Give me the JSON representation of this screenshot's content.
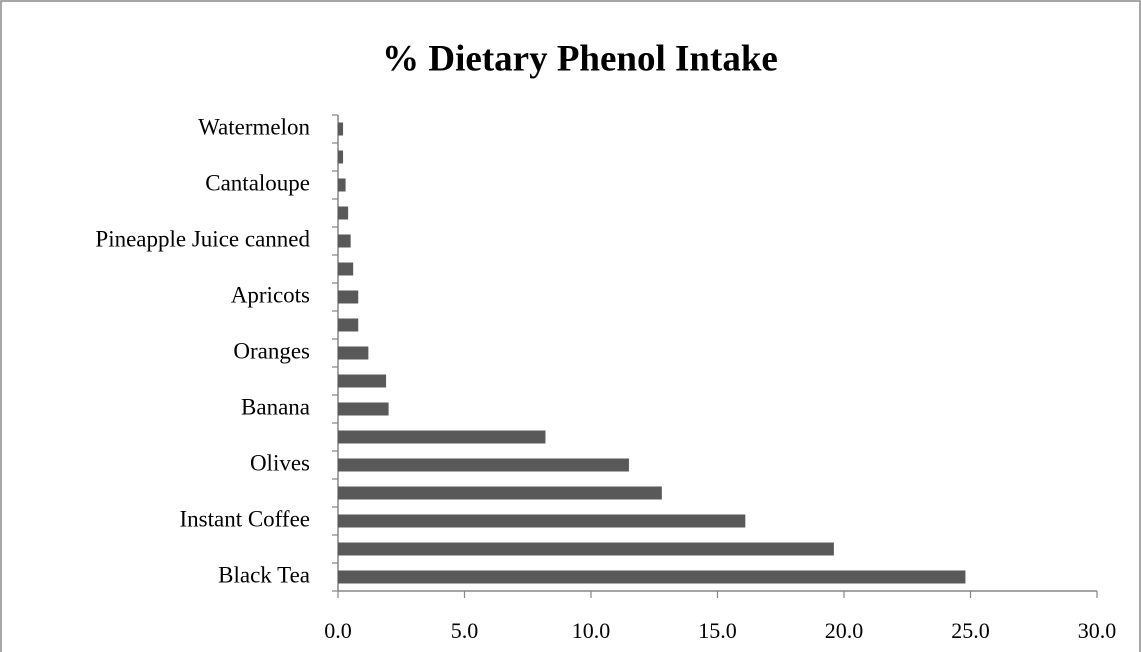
{
  "chart_data": {
    "type": "bar",
    "orientation": "horizontal",
    "title": "% Dietary Phenol Intake",
    "categories": [
      "Black Tea",
      null,
      "Instant Coffee",
      null,
      "Olives",
      null,
      "Banana",
      null,
      "Oranges",
      null,
      "Apricots",
      null,
      "Pineapple Juice canned",
      null,
      "Cantaloupe",
      null,
      "Watermelon"
    ],
    "values": [
      24.8,
      19.6,
      16.1,
      12.8,
      11.5,
      8.2,
      2.0,
      1.9,
      1.2,
      0.8,
      0.8,
      0.6,
      0.5,
      0.4,
      0.3,
      0.2,
      0.2
    ],
    "color": "#595959",
    "xlim": [
      0,
      30
    ],
    "xticks": [
      {
        "value": 0,
        "label": "0.0"
      },
      {
        "value": 5,
        "label": "5.0"
      },
      {
        "value": 10,
        "label": "10.0"
      },
      {
        "value": 15,
        "label": "15.0"
      },
      {
        "value": 20,
        "label": "20.0"
      },
      {
        "value": 25,
        "label": "25.0"
      },
      {
        "value": 30,
        "label": "30.0"
      }
    ],
    "grid": false
  }
}
